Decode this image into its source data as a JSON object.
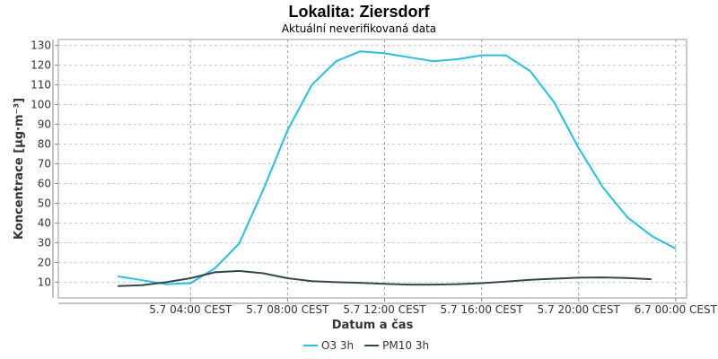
{
  "chart_data": {
    "type": "line",
    "title": "Lokalita: Ziersdorf",
    "subtitle": "Aktuální neverifikovaná data",
    "xlabel": "Datum a čas",
    "ylabel": "Koncentrace [µg·m⁻³]",
    "x_hours": [
      -1,
      0,
      1,
      2,
      3,
      4,
      5,
      6,
      7,
      8,
      9,
      10,
      11,
      12,
      13,
      14,
      15,
      16,
      17,
      18,
      19,
      20,
      21,
      22,
      23,
      24
    ],
    "x_ticks": [
      {
        "hour": 4,
        "label": "5.7 04:00 CEST"
      },
      {
        "hour": 8,
        "label": "5.7 08:00 CEST"
      },
      {
        "hour": 12,
        "label": "5.7 12:00 CEST"
      },
      {
        "hour": 16,
        "label": "5.7 16:00 CEST"
      },
      {
        "hour": 20,
        "label": "5.7 20:00 CEST"
      },
      {
        "hour": 24,
        "label": "6.7 00:00 CEST"
      }
    ],
    "xlim": [
      -1.45,
      24.45
    ],
    "ylim": [
      2,
      133
    ],
    "y_ticks": [
      10,
      20,
      30,
      40,
      50,
      60,
      70,
      80,
      90,
      100,
      110,
      120,
      130
    ],
    "grid": true,
    "legend_position": "bottom",
    "series": [
      {
        "name": "O3 3h",
        "color": "#1ec0f0",
        "values": [
          null,
          null,
          13,
          11,
          9,
          9.5,
          17,
          29.5,
          57,
          87,
          110,
          122,
          127,
          126,
          124,
          122,
          123,
          125,
          125,
          117,
          101,
          78,
          58,
          43,
          33.5,
          27
        ]
      },
      {
        "name": "PM10 3h",
        "color": "#2f4a45",
        "values": [
          null,
          null,
          8,
          8.5,
          10,
          12,
          15,
          15.7,
          14.5,
          12,
          10.5,
          10,
          9.7,
          9.2,
          8.8,
          8.8,
          9,
          9.5,
          10.3,
          11.2,
          11.8,
          12.3,
          12.4,
          12.1,
          11.5,
          null
        ]
      }
    ]
  }
}
